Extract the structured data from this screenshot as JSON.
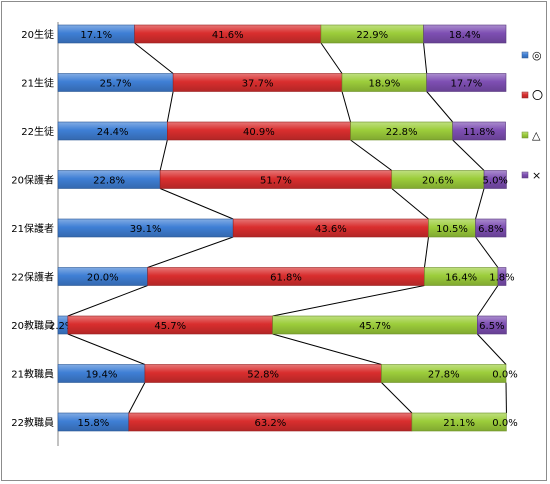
{
  "chart_data": {
    "type": "bar",
    "orientation": "horizontal",
    "stacked": "percent",
    "series_lines": true,
    "categories": [
      "20生徒",
      "21生徒",
      "22生徒",
      "20保護者",
      "21保護者",
      "22保護者",
      "20教職員",
      "21教職員",
      "22教職員"
    ],
    "series": [
      {
        "name": "◎",
        "color": "#3f7fd5",
        "values": [
          17.1,
          25.7,
          24.4,
          22.8,
          39.1,
          20.0,
          2.2,
          19.4,
          15.8
        ],
        "labels": [
          "17.1%",
          "25.7%",
          "24.4%",
          "22.8%",
          "39.1%",
          "20.0%",
          "2.2%",
          "19.4%",
          "15.8%"
        ]
      },
      {
        "name": "〇",
        "color": "#d92e2e",
        "values": [
          41.6,
          37.7,
          40.9,
          51.7,
          43.6,
          61.8,
          45.7,
          52.8,
          63.2
        ],
        "labels": [
          "41.6%",
          "37.7%",
          "40.9%",
          "51.7%",
          "43.6%",
          "61.8%",
          "45.7%",
          "52.8%",
          "63.2%"
        ]
      },
      {
        "name": "△",
        "color": "#9ccd3b",
        "values": [
          22.9,
          18.9,
          22.8,
          20.6,
          10.5,
          16.4,
          45.7,
          27.8,
          21.1
        ],
        "labels": [
          "22.9%",
          "18.9%",
          "22.8%",
          "20.6%",
          "10.5%",
          "16.4%",
          "45.7%",
          "27.8%",
          "21.1%"
        ]
      },
      {
        "name": "×",
        "color": "#7e4fb3",
        "values": [
          18.4,
          17.7,
          11.8,
          5.0,
          6.8,
          1.8,
          6.5,
          0.0,
          0.0
        ],
        "labels": [
          "18.4%",
          "17.7%",
          "11.8%",
          "5.0%",
          "6.8%",
          "1.8%",
          "6.5%",
          "0.0%",
          "0.0%"
        ]
      }
    ],
    "xlim": [
      0,
      100
    ],
    "legend": "right",
    "grid": false
  }
}
